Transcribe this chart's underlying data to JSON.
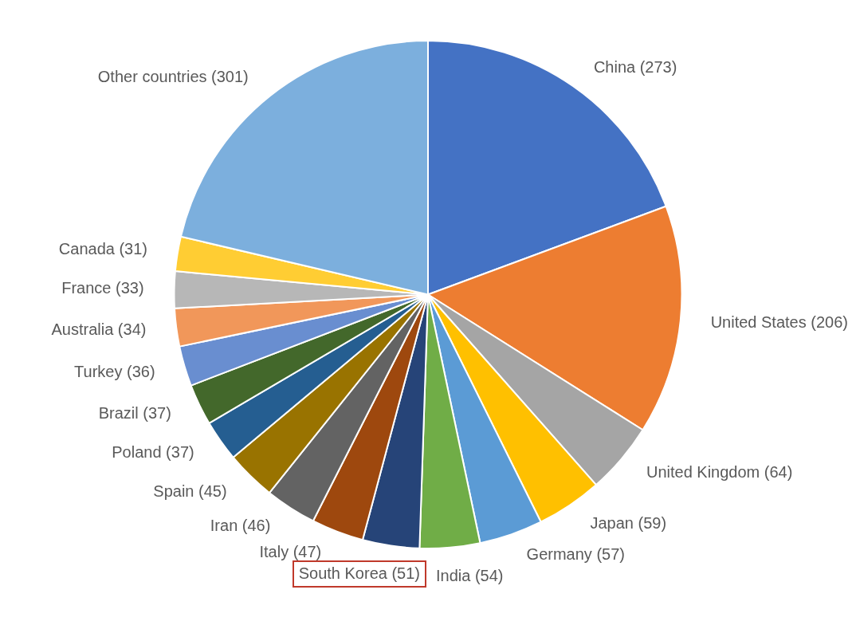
{
  "chart_data": {
    "type": "pie",
    "categories": [
      "China",
      "United States",
      "United Kingdom",
      "Japan",
      "Germany",
      "India",
      "South Korea",
      "Italy",
      "Iran",
      "Spain",
      "Poland",
      "Brazil",
      "Turkey",
      "Australia",
      "France",
      "Canada",
      "Other countries"
    ],
    "values": [
      273,
      206,
      64,
      59,
      57,
      54,
      51,
      47,
      46,
      45,
      37,
      37,
      36,
      34,
      33,
      31,
      301
    ],
    "colors": [
      "#4472c4",
      "#ed7d31",
      "#a5a5a5",
      "#ffc000",
      "#5b9bd5",
      "#70ad47",
      "#264478",
      "#9e480e",
      "#636363",
      "#997300",
      "#255e91",
      "#43682b",
      "#698ed0",
      "#f1975a",
      "#b7b7b7",
      "#ffcd33",
      "#7cafdd"
    ],
    "value_labels": [
      "(273)",
      "(206)",
      "(64)",
      "(59)",
      "(57)",
      "(54)",
      "(51)",
      "(47)",
      "(46)",
      "(45)",
      "(37)",
      "(37)",
      "(36)",
      "(34)",
      "(33)",
      "(31)",
      "(301)"
    ],
    "legend": false
  }
}
